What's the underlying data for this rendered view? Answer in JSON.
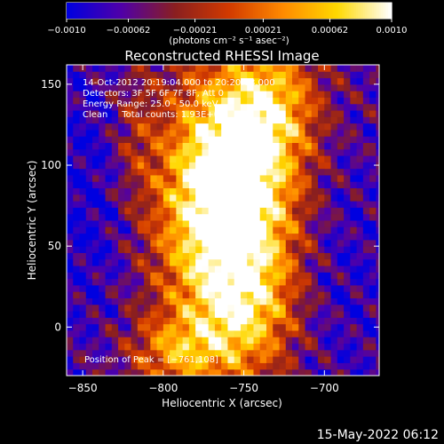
{
  "chart_data": {
    "type": "heatmap",
    "title": "Reconstructed RHESSI Image",
    "xlabel": "Heliocentric X (arcsec)",
    "ylabel": "Heliocentric Y (arcsec)",
    "xlim": [
      -860,
      -666
    ],
    "ylim": [
      -30,
      162
    ],
    "x_ticks": [
      -850,
      -800,
      -750,
      -700
    ],
    "x_tick_labels": [
      "−850",
      "−800",
      "−750",
      "−700"
    ],
    "y_ticks": [
      0,
      50,
      100,
      150
    ],
    "y_tick_labels": [
      "0",
      "50",
      "100",
      "150"
    ],
    "colorbar": {
      "min": -0.001,
      "max": 0.001,
      "ticks": [
        -0.001,
        -0.00062,
        -0.00021,
        0.00021,
        0.00062,
        0.001
      ],
      "tick_labels": [
        "−0.0010",
        "−0.00062",
        "−0.00021",
        "0.00021",
        "0.00062",
        "0.0010"
      ],
      "units_label": "(photons cm⁻² s⁻¹ asec⁻²)",
      "colormap": [
        "#0000e0",
        "#5000a8",
        "#8a1f1f",
        "#d23a00",
        "#ff8a00",
        "#ffd800",
        "#ffffff"
      ]
    },
    "annotations": [
      "14‑Oct‑2012 20:19:04.000 to 20:20:08.000",
      "Detectors: 3F 5F 6F 7F 8F, Att 0",
      "Energy Range: 25.0 ‑ 50.0 keV",
      "Clean     Total counts: 1.93E+04"
    ],
    "peak_label": "Position of Peak = [−761,108]",
    "peak": [
      -761,
      108
    ],
    "footer_date": "15‑May‑2022 06:12"
  }
}
